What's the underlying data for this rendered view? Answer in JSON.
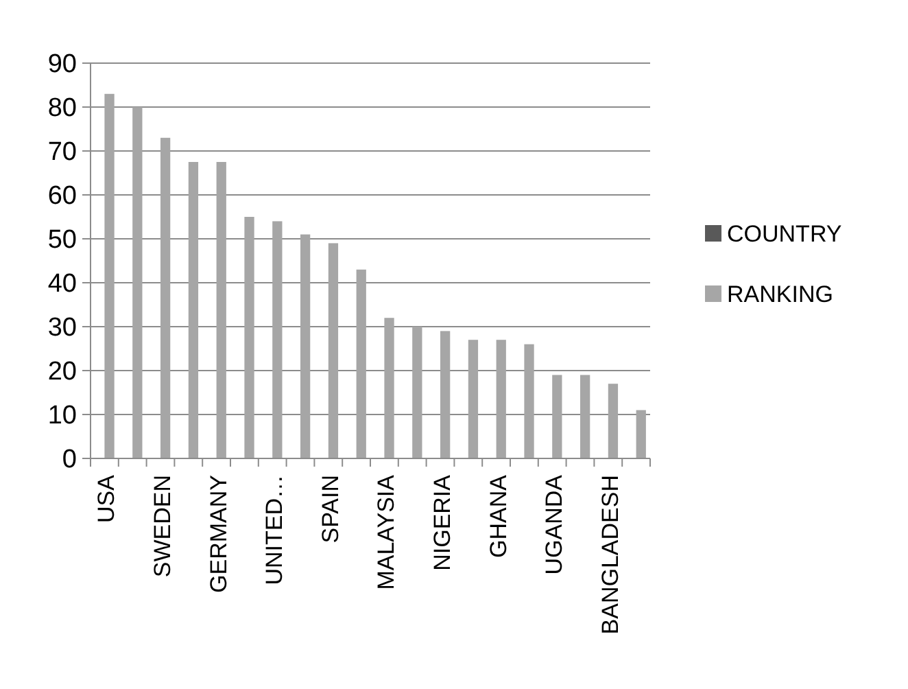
{
  "chart_data": {
    "type": "bar",
    "categories": [
      "USA",
      null,
      "SWEDEN",
      null,
      "GERMANY",
      null,
      "UNITED…",
      null,
      "SPAIN",
      null,
      "MALAYSIA",
      null,
      "NIGERIA",
      null,
      "GHANA",
      null,
      "UGANDA",
      null,
      "BANGLADESH",
      null
    ],
    "series": [
      {
        "name": "COUNTRY",
        "color": "#595959",
        "values": [
          null,
          null,
          null,
          null,
          null,
          null,
          null,
          null,
          null,
          null,
          null,
          null,
          null,
          null,
          null,
          null,
          null,
          null,
          null,
          null
        ]
      },
      {
        "name": "RANKING",
        "color": "#a6a6a6",
        "values": [
          83,
          80,
          73,
          67.5,
          67.5,
          55,
          54,
          51,
          49,
          43,
          32,
          30,
          29,
          27,
          27,
          26,
          19,
          19,
          17,
          11
        ]
      }
    ],
    "ylim": [
      0,
      90
    ],
    "yticks": [
      0,
      10,
      20,
      30,
      40,
      50,
      60,
      70,
      80,
      90
    ],
    "grid": "y",
    "legend": "right"
  }
}
